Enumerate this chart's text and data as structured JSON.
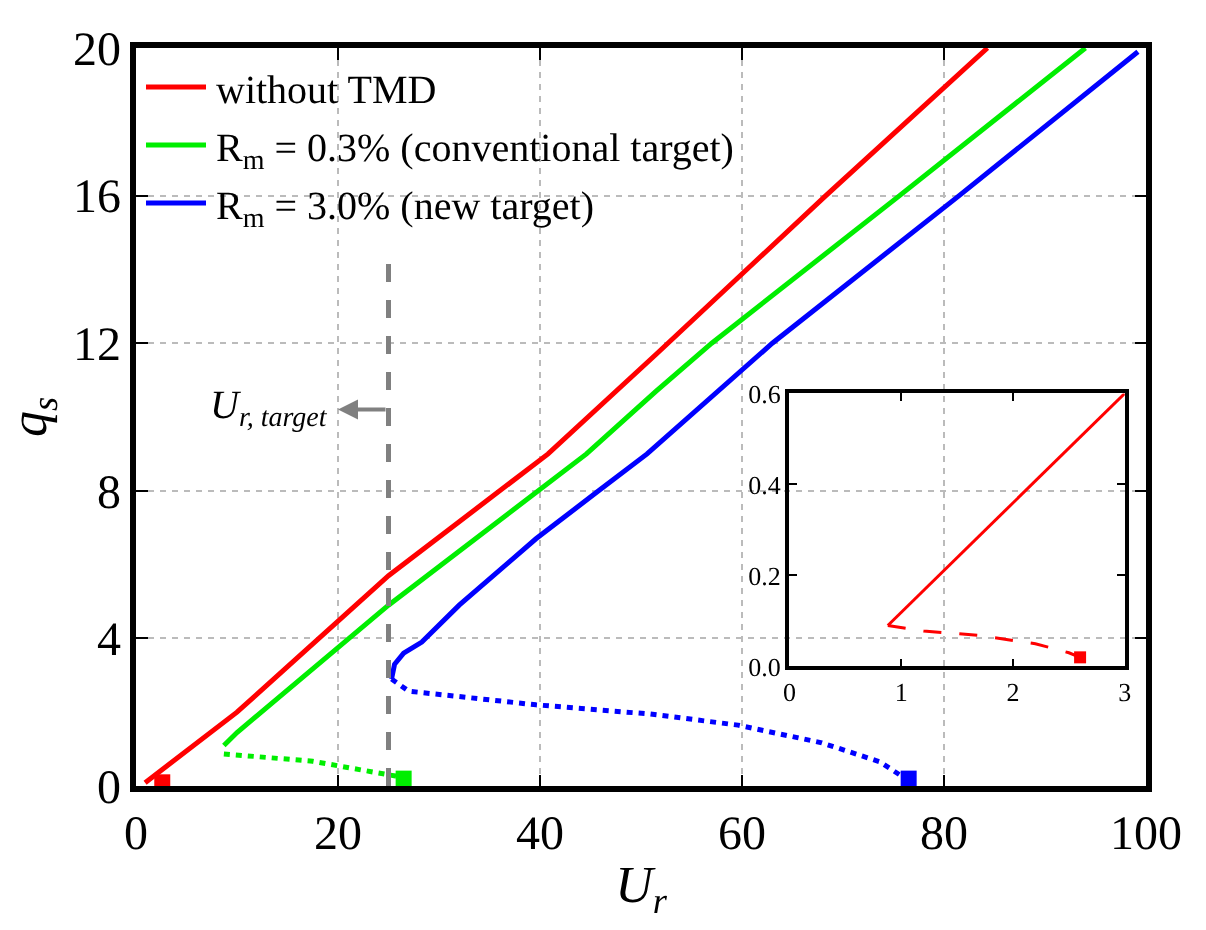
{
  "chart_data": [
    {
      "type": "line",
      "xlabel": "U$_{r}$",
      "ylabel": "q$_{s}$",
      "xlim": [
        0,
        100
      ],
      "ylim": [
        0,
        20
      ],
      "xticks": [
        0,
        20,
        40,
        60,
        80,
        100
      ],
      "yticks": [
        0,
        4,
        8,
        12,
        16,
        20
      ],
      "grid": true,
      "legend": "top left",
      "series": [
        {
          "name": "without TMD",
          "color": "#ff0000",
          "line_style": "solid",
          "x": [
            0.9,
            10,
            25,
            40.8,
            51.5,
            68.3,
            84.3
          ],
          "values": [
            0.09,
            2.0,
            5.7,
            9.0,
            11.7,
            16,
            20
          ]
        },
        {
          "name": "R$_{m}$ = 0.3% (conventional target)",
          "color": "#00ee00",
          "line_style": "solid",
          "x": [
            8.7,
            10,
            25,
            44.6,
            51.5,
            57,
            75.6,
            94
          ],
          "values": [
            1.1,
            1.45,
            4.9,
            9.0,
            10.7,
            12,
            16,
            20
          ]
        },
        {
          "color": "#00ee00",
          "line_style": "dotted",
          "x": [
            8.7,
            17.5,
            25.7,
            26.5
          ],
          "values": [
            0.87,
            0.67,
            0.27,
            0.2
          ]
        },
        {
          "name": "R$_{m}$ = 3.0% (new target)",
          "color": "#0000ff",
          "line_style": "solid",
          "x": [
            25.3,
            25.6,
            26.5,
            28.3,
            32,
            39.6,
            45.8,
            50.6,
            63,
            81.5,
            99.2
          ],
          "values": [
            2.9,
            3.3,
            3.6,
            3.9,
            4.9,
            6.7,
            8.0,
            9.0,
            12,
            16,
            19.9
          ]
        },
        {
          "color": "#0000ff",
          "line_style": "dotted",
          "x": [
            25.3,
            27,
            39.6,
            50.9,
            59.6,
            67.9,
            73.6,
            76.2
          ],
          "values": [
            2.9,
            2.57,
            2.2,
            1.95,
            1.65,
            1.17,
            0.66,
            0.2
          ]
        },
        {
          "type": "scatter",
          "marker": "square",
          "color": "#ff0000",
          "x": [
            2.6
          ],
          "values": [
            0.1
          ]
        },
        {
          "type": "scatter",
          "marker": "square",
          "color": "#00ee00",
          "x": [
            26.5
          ],
          "values": [
            0.2
          ]
        },
        {
          "type": "scatter",
          "marker": "square",
          "color": "#0000ff",
          "x": [
            76.5
          ],
          "values": [
            0.2
          ]
        }
      ],
      "ref_lines": [
        {
          "axis": "x",
          "value": 25,
          "label": "U$_{r, target}$",
          "color": "#808080",
          "line_style": "dashed"
        }
      ]
    },
    {
      "type": "line",
      "xlim": [
        0,
        3
      ],
      "ylim": [
        0,
        0.6
      ],
      "xticks": [
        0,
        1,
        2,
        3
      ],
      "yticks": [
        {
          "value": 0,
          "label": "0.0"
        },
        {
          "value": 0.2,
          "label": "0.2"
        },
        {
          "value": 0.4,
          "label": "0.4"
        },
        {
          "value": 0.6,
          "label": "0.6"
        }
      ],
      "series": [
        {
          "color": "#ff0000",
          "line_style": "solid",
          "x": [
            0.88,
            3
          ],
          "values": [
            0.09,
            0.6
          ]
        },
        {
          "color": "#ff0000",
          "line_style": "dashed",
          "x": [
            0.88,
            1.2,
            1.7,
            2.2,
            2.5,
            2.6
          ],
          "values": [
            0.09,
            0.078,
            0.068,
            0.05,
            0.03,
            0.02
          ]
        },
        {
          "type": "scatter",
          "marker": "square",
          "color": "#ff0000",
          "x": [
            2.6
          ],
          "values": [
            0.02
          ]
        }
      ]
    }
  ]
}
